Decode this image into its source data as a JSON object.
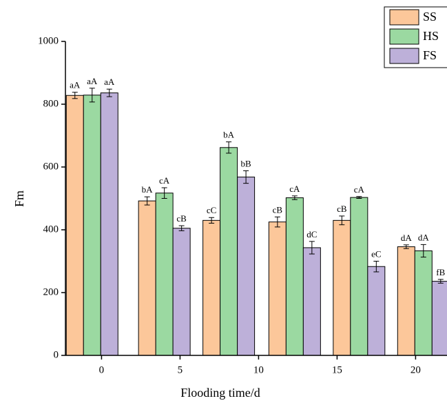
{
  "chart_data": {
    "type": "bar",
    "x_label": "Flooding time/d",
    "y_label": "Fm",
    "x": [
      -0.6,
      4.0,
      8.1,
      12.3,
      16.4,
      20.5
    ],
    "xlim": [
      -2.3,
      22
    ],
    "xticks": [
      0,
      5,
      10,
      15,
      20
    ],
    "ylim": [
      0,
      1000
    ],
    "yticks": [
      0,
      200,
      400,
      600,
      800,
      1000
    ],
    "legend": "top-right",
    "series": [
      {
        "name": "SS",
        "color": "#fcc79a",
        "values": [
          828,
          492,
          430,
          425,
          430,
          346
        ],
        "errors": [
          10,
          13,
          9,
          16,
          14,
          6
        ],
        "labels": [
          "aA",
          "bA",
          "cC",
          "cB",
          "cB",
          "dA"
        ]
      },
      {
        "name": "HS",
        "color": "#9bd9a1",
        "values": [
          829,
          517,
          662,
          502,
          503,
          333
        ],
        "errors": [
          22,
          17,
          18,
          6,
          3,
          20
        ],
        "labels": [
          "aA",
          "cA",
          "bA",
          "cA",
          "cA",
          "dA"
        ]
      },
      {
        "name": "FS",
        "color": "#bdb0d9",
        "values": [
          836,
          405,
          568,
          343,
          283,
          236
        ],
        "errors": [
          12,
          8,
          20,
          20,
          17,
          6
        ],
        "labels": [
          "aA",
          "cB",
          "bB",
          "dC",
          "eC",
          "fB"
        ]
      }
    ]
  }
}
